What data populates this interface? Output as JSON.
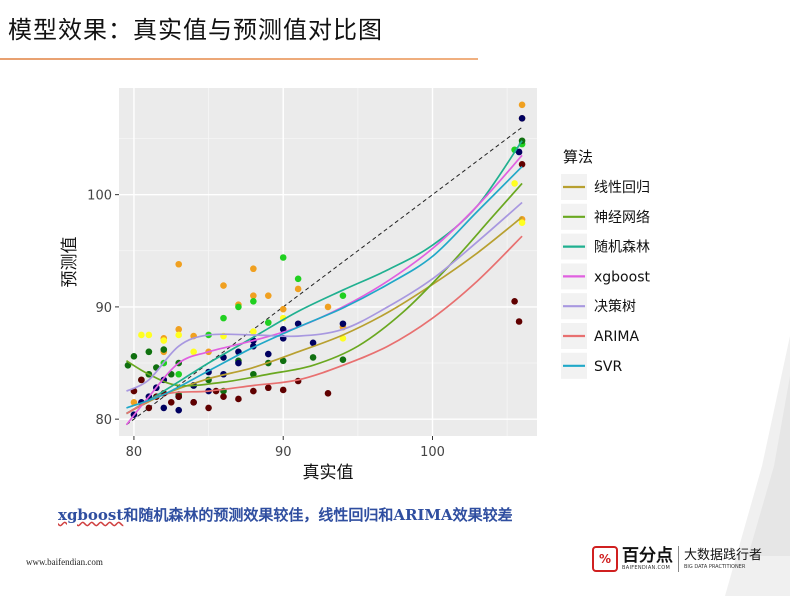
{
  "header": {
    "title": "模型效果：真实值与预测值对比图"
  },
  "caption": {
    "highlight": "xgboost",
    "rest": "和随机森林的预测效果较佳，线性回归和ARIMA效果较差"
  },
  "footer": {
    "website": "www.baifendian.com",
    "logo_mark": "%",
    "logo_cn": "百分点",
    "logo_en": "BAIFENDIAN.COM",
    "slogan": "大数据践行者",
    "slogan_en": "BIG DATA PRACTITIONER"
  },
  "chart_data": {
    "type": "scatter",
    "xlabel": "真实值",
    "ylabel": "预测值",
    "xlim": [
      79,
      107
    ],
    "ylim": [
      78.5,
      109.5
    ],
    "xticks": [
      80,
      90,
      100
    ],
    "yticks": [
      80,
      90,
      100
    ],
    "grid": true,
    "legend_title": "算法",
    "legend_position": "right",
    "reference_line": {
      "style": "dashed",
      "x": [
        79.5,
        106
      ],
      "y": [
        79.5,
        106
      ]
    },
    "series": [
      {
        "name": "线性回归",
        "color": "#b8a030",
        "smooth": [
          [
            79.5,
            80.5
          ],
          [
            82,
            82.2
          ],
          [
            85,
            83.6
          ],
          [
            88,
            84.6
          ],
          [
            91,
            86.0
          ],
          [
            94,
            87.5
          ],
          [
            97,
            89.5
          ],
          [
            100,
            92.0
          ],
          [
            103,
            94.8
          ],
          [
            106,
            98.0
          ]
        ]
      },
      {
        "name": "神经网络",
        "color": "#6aa820",
        "smooth": [
          [
            79.5,
            85.2
          ],
          [
            81,
            84.0
          ],
          [
            83,
            83.0
          ],
          [
            86,
            83.3
          ],
          [
            89,
            84.0
          ],
          [
            92,
            84.8
          ],
          [
            95,
            86.5
          ],
          [
            98,
            89.5
          ],
          [
            101,
            93.5
          ],
          [
            104,
            98.0
          ],
          [
            106,
            101.0
          ]
        ]
      },
      {
        "name": "随机森林",
        "color": "#20b090",
        "smooth": [
          [
            79.5,
            80.5
          ],
          [
            82,
            82.5
          ],
          [
            85,
            85.0
          ],
          [
            88,
            87.3
          ],
          [
            91,
            89.6
          ],
          [
            94,
            91.5
          ],
          [
            97,
            93.3
          ],
          [
            100,
            95.5
          ],
          [
            103,
            99.0
          ],
          [
            106,
            104.8
          ]
        ]
      },
      {
        "name": "xgboost",
        "color": "#e060e0",
        "smooth": [
          [
            79.5,
            79.5
          ],
          [
            81,
            82.0
          ],
          [
            83,
            85.0
          ],
          [
            85,
            86.0
          ],
          [
            88,
            87.0
          ],
          [
            91,
            88.2
          ],
          [
            94,
            90.0
          ],
          [
            97,
            92.3
          ],
          [
            100,
            95.2
          ],
          [
            103,
            99.0
          ],
          [
            106,
            103.5
          ]
        ]
      },
      {
        "name": "决策树",
        "color": "#a898e0",
        "smooth": [
          [
            79.5,
            82.5
          ],
          [
            81,
            83.5
          ],
          [
            83,
            86.5
          ],
          [
            85,
            87.5
          ],
          [
            88,
            87.5
          ],
          [
            91,
            87.4
          ],
          [
            94,
            88.0
          ],
          [
            97,
            90.0
          ],
          [
            100,
            92.5
          ],
          [
            103,
            95.8
          ],
          [
            106,
            99.3
          ]
        ]
      },
      {
        "name": "ARIMA",
        "color": "#e87070",
        "smooth": [
          [
            79.5,
            80.5
          ],
          [
            82,
            82.2
          ],
          [
            85,
            82.5
          ],
          [
            88,
            83.0
          ],
          [
            91,
            83.5
          ],
          [
            94,
            84.8
          ],
          [
            97,
            86.5
          ],
          [
            100,
            89.0
          ],
          [
            103,
            92.3
          ],
          [
            106,
            96.3
          ]
        ]
      },
      {
        "name": "SVR",
        "color": "#20a8c8",
        "smooth": [
          [
            79.5,
            81.0
          ],
          [
            82,
            82.2
          ],
          [
            85,
            84.3
          ],
          [
            88,
            86.4
          ],
          [
            91,
            88.2
          ],
          [
            94,
            89.9
          ],
          [
            97,
            92.0
          ],
          [
            100,
            94.5
          ],
          [
            103,
            98.5
          ],
          [
            106,
            102.5
          ]
        ]
      }
    ],
    "points": [
      {
        "color": "#f0a020",
        "xy": [
          [
            80,
            81.5
          ],
          [
            81,
            84.0
          ],
          [
            82,
            86.0
          ],
          [
            82,
            87.2
          ],
          [
            83,
            88.0
          ],
          [
            83,
            93.8
          ],
          [
            84,
            87.4
          ],
          [
            85,
            86.0
          ],
          [
            86,
            91.9
          ],
          [
            87,
            90.2
          ],
          [
            88,
            93.4
          ],
          [
            88,
            91.0
          ],
          [
            89,
            91.0
          ],
          [
            90,
            89.8
          ],
          [
            91,
            91.6
          ],
          [
            93,
            90.0
          ],
          [
            94,
            88.2
          ],
          [
            106,
            108.0
          ],
          [
            106,
            106.8
          ],
          [
            106,
            97.8
          ]
        ]
      },
      {
        "color": "#ffff20",
        "xy": [
          [
            80.5,
            87.5
          ],
          [
            81,
            87.5
          ],
          [
            82,
            87.0
          ],
          [
            83,
            87.5
          ],
          [
            84,
            86.0
          ],
          [
            86,
            87.4
          ],
          [
            88,
            87.8
          ],
          [
            90,
            89.0
          ],
          [
            94,
            87.2
          ],
          [
            105.5,
            101.0
          ],
          [
            106,
            97.5
          ]
        ]
      },
      {
        "color": "#20d020",
        "xy": [
          [
            81,
            86.0
          ],
          [
            82,
            85.0
          ],
          [
            83,
            84.0
          ],
          [
            85,
            87.5
          ],
          [
            86,
            89.0
          ],
          [
            87,
            90.0
          ],
          [
            88,
            90.5
          ],
          [
            89,
            88.6
          ],
          [
            90,
            94.4
          ],
          [
            91,
            92.5
          ],
          [
            94,
            91.0
          ],
          [
            105.5,
            104.0
          ],
          [
            106,
            104.5
          ]
        ]
      },
      {
        "color": "#107010",
        "xy": [
          [
            79.6,
            84.8
          ],
          [
            80,
            85.6
          ],
          [
            80.5,
            83.5
          ],
          [
            81,
            86.0
          ],
          [
            81,
            84.0
          ],
          [
            81.5,
            84.6
          ],
          [
            82,
            86.2
          ],
          [
            82.5,
            84.0
          ],
          [
            83,
            85.0
          ],
          [
            83,
            82.2
          ],
          [
            84,
            83.0
          ],
          [
            85,
            83.5
          ],
          [
            86,
            82.5
          ],
          [
            87,
            85.2
          ],
          [
            88,
            84.0
          ],
          [
            89,
            85.0
          ],
          [
            90,
            85.2
          ],
          [
            92,
            85.5
          ],
          [
            94,
            85.3
          ],
          [
            106,
            104.8
          ]
        ]
      },
      {
        "color": "#000060",
        "xy": [
          [
            80,
            80.4
          ],
          [
            80.5,
            81.5
          ],
          [
            81,
            82.0
          ],
          [
            81.5,
            82.8
          ],
          [
            82,
            81.0
          ],
          [
            82,
            83.5
          ],
          [
            83,
            82.0
          ],
          [
            83,
            80.8
          ],
          [
            84,
            81.5
          ],
          [
            84,
            83.0
          ],
          [
            85,
            82.5
          ],
          [
            85,
            84.2
          ],
          [
            86,
            84.0
          ],
          [
            86,
            85.5
          ],
          [
            87,
            86.0
          ],
          [
            87,
            85.0
          ],
          [
            88,
            87.0
          ],
          [
            88,
            86.5
          ],
          [
            89,
            85.8
          ],
          [
            90,
            88.0
          ],
          [
            90,
            87.2
          ],
          [
            91,
            88.5
          ],
          [
            92,
            86.8
          ],
          [
            94,
            88.5
          ],
          [
            106,
            106.8
          ],
          [
            105.8,
            103.8
          ]
        ]
      },
      {
        "color": "#600000",
        "xy": [
          [
            80,
            82.5
          ],
          [
            80.5,
            83.5
          ],
          [
            81,
            81.0
          ],
          [
            81.5,
            82.0
          ],
          [
            82,
            82.3
          ],
          [
            82.5,
            81.5
          ],
          [
            83,
            82.0
          ],
          [
            84,
            81.5
          ],
          [
            85,
            81.0
          ],
          [
            85.5,
            82.5
          ],
          [
            86,
            82.0
          ],
          [
            87,
            81.8
          ],
          [
            88,
            82.5
          ],
          [
            89,
            82.8
          ],
          [
            90,
            82.6
          ],
          [
            91,
            83.4
          ],
          [
            93,
            82.3
          ],
          [
            105.5,
            90.5
          ],
          [
            105.8,
            88.7
          ],
          [
            106,
            102.7
          ]
        ]
      }
    ]
  }
}
